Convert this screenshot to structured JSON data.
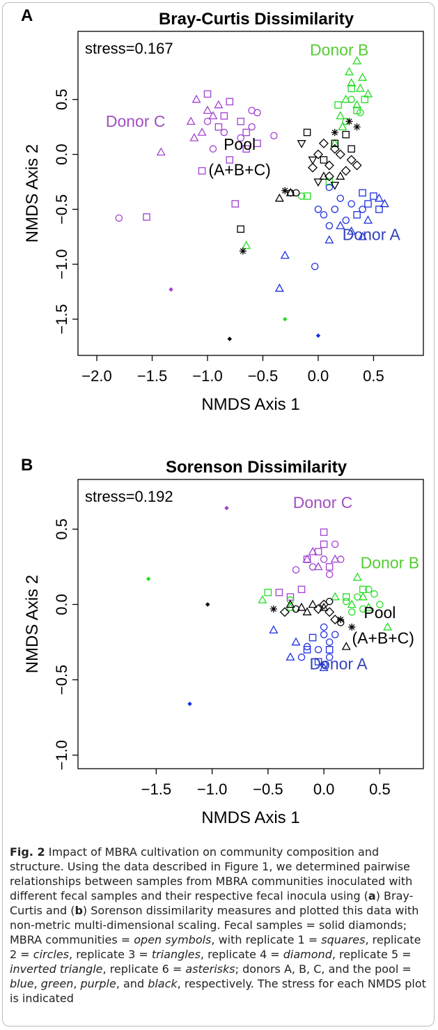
{
  "chart_data": [
    {
      "type": "scatter",
      "panel": "A",
      "title": "Bray-Curtis Dissimilarity",
      "stress": "stress=0.167",
      "x_label": "NMDS Axis 1",
      "y_label": "NMDS Axis 2",
      "xlim": [
        -2.17,
        0.95
      ],
      "ylim": [
        -1.83,
        1.12
      ],
      "xticks": [
        {
          "value": -2,
          "label": "−2.0"
        },
        {
          "value": -1.5,
          "label": "−1.5"
        },
        {
          "value": -1,
          "label": "−1.0"
        },
        {
          "value": -0.5,
          "label": "−0.5"
        },
        {
          "value": 0,
          "label": "0.0"
        },
        0.5
      ],
      "yticks": [
        {
          "value": -1.5,
          "label": "−1.5"
        },
        {
          "value": -1,
          "label": "−1.0"
        },
        {
          "value": -0.5,
          "label": "−0.5"
        },
        {
          "value": 0,
          "label": "0.0"
        },
        0.5
      ],
      "annotations": [
        {
          "text": "Donor B",
          "x": 0.19,
          "y": 0.9,
          "color": "#55cc33"
        },
        {
          "text": "Donor C",
          "x": -1.65,
          "y": 0.25,
          "color": "#a050c0"
        },
        {
          "text": "Pool",
          "x": -0.71,
          "y": 0.04,
          "color": "#000000"
        },
        {
          "text": "(A+B+C)",
          "x": -0.71,
          "y": -0.19,
          "color": "#000000"
        },
        {
          "text": "Donor A",
          "x": 0.48,
          "y": -0.78,
          "color": "#3344bb"
        }
      ],
      "series": [
        {
          "color": "#a040d0",
          "marker": "square",
          "x": [
            -1.0,
            -0.8,
            -0.7,
            -0.65,
            -0.9,
            -1.05,
            -0.8,
            -0.55,
            -0.75,
            -1.55,
            -0.65,
            -0.85
          ],
          "y": [
            0.55,
            0.48,
            0.3,
            0.2,
            0.25,
            -0.15,
            -0.05,
            0.1,
            -0.45,
            -0.57,
            0.05,
            0.35
          ]
        },
        {
          "color": "#a040d0",
          "marker": "circle",
          "x": [
            -0.6,
            -0.55,
            -0.7,
            -0.85,
            -0.4,
            -1.0,
            -1.8,
            -0.95,
            -0.6
          ],
          "y": [
            0.4,
            0.38,
            0.15,
            0.2,
            0.17,
            0.3,
            -0.58,
            0.05,
            0.25
          ]
        },
        {
          "color": "#a040d0",
          "marker": "triangle",
          "x": [
            -1.1,
            -1.0,
            -1.15,
            -1.42,
            -1.12,
            -0.9,
            -0.95,
            -1.05
          ],
          "y": [
            0.5,
            0.4,
            0.3,
            0.02,
            0.15,
            0.45,
            0.35,
            0.2
          ]
        },
        {
          "color": "#a040d0",
          "marker": "diamond-solid",
          "x": [
            -1.33
          ],
          "y": [
            -1.23
          ]
        },
        {
          "color": "#22dd22",
          "marker": "triangle",
          "x": [
            0.35,
            0.4,
            0.3,
            0.25,
            0.45,
            0.35,
            0.2,
            0.28,
            0.38,
            0.15,
            0.22,
            -0.65
          ],
          "y": [
            0.85,
            0.7,
            0.65,
            0.5,
            0.55,
            0.45,
            0.35,
            0.75,
            0.6,
            0.1,
            0.25,
            -0.83
          ]
        },
        {
          "color": "#22dd22",
          "marker": "square",
          "x": [
            0.3,
            0.42,
            0.18,
            0.35,
            -0.1,
            0.1
          ],
          "y": [
            0.6,
            0.5,
            0.45,
            0.4,
            -0.38,
            -0.25
          ]
        },
        {
          "color": "#22dd22",
          "marker": "circle",
          "x": [
            0.3,
            0.38,
            -0.15,
            0.25
          ],
          "y": [
            0.5,
            0.38,
            -0.38,
            0.3
          ]
        },
        {
          "color": "#22dd22",
          "marker": "diamond-solid",
          "x": [
            -0.3
          ],
          "y": [
            -1.5
          ]
        },
        {
          "color": "#1a2ee0",
          "marker": "circle",
          "x": [
            0.1,
            0.15,
            0.05,
            0.2,
            0.25,
            0.3,
            0.0,
            -0.03,
            0.4,
            0.1
          ],
          "y": [
            -0.3,
            -0.5,
            -0.55,
            -0.4,
            -0.6,
            -0.45,
            -0.5,
            -1.02,
            -0.5,
            -0.65
          ]
        },
        {
          "color": "#1a2ee0",
          "marker": "square",
          "x": [
            0.45,
            0.5,
            0.55,
            0.35,
            0.4
          ],
          "y": [
            -0.45,
            -0.38,
            -0.5,
            -0.55,
            -0.35
          ]
        },
        {
          "color": "#1a2ee0",
          "marker": "triangle",
          "x": [
            0.55,
            0.45,
            0.2,
            0.4,
            0.3,
            0.1,
            -0.3,
            -0.35,
            0.6
          ],
          "y": [
            -0.4,
            -0.6,
            -0.65,
            -0.75,
            -0.7,
            -0.78,
            -0.92,
            -1.22,
            -0.45
          ]
        },
        {
          "color": "#1a2ee0",
          "marker": "diamond-solid",
          "x": [
            0.0
          ],
          "y": [
            -1.65
          ]
        },
        {
          "color": "#000000",
          "marker": "square",
          "x": [
            -0.1,
            0.15,
            0.3,
            0.05,
            -0.7,
            0.25
          ],
          "y": [
            0.2,
            0.1,
            0.05,
            -0.05,
            -0.68,
            0.18
          ]
        },
        {
          "color": "#000000",
          "marker": "diamond",
          "x": [
            0.0,
            0.1,
            0.2,
            0.3,
            -0.05,
            0.15,
            0.25,
            0.35,
            0.05,
            0.1
          ],
          "y": [
            0.0,
            -0.1,
            0.0,
            -0.05,
            -0.12,
            0.05,
            -0.15,
            -0.1,
            0.1,
            -0.2
          ]
        },
        {
          "color": "#000000",
          "marker": "triangle",
          "x": [
            -0.35,
            -0.25,
            0.05,
            0.2
          ],
          "y": [
            -0.4,
            -0.35,
            -0.2,
            -0.2
          ]
        },
        {
          "color": "#000000",
          "marker": "inverted-triangle",
          "x": [
            -0.15,
            0.0,
            -0.05,
            0.15
          ],
          "y": [
            0.1,
            -0.25,
            -0.05,
            -0.28
          ]
        },
        {
          "color": "#000000",
          "marker": "asterisk",
          "x": [
            0.28,
            0.15,
            -0.3,
            -0.68,
            0.35
          ],
          "y": [
            0.3,
            0.2,
            -0.33,
            -0.88,
            0.25
          ]
        },
        {
          "color": "#000000",
          "marker": "circle",
          "x": [
            -0.25,
            -0.2
          ],
          "y": [
            -0.35,
            -0.35
          ]
        },
        {
          "color": "#000000",
          "marker": "diamond-solid",
          "x": [
            -0.8
          ],
          "y": [
            -1.68
          ]
        }
      ]
    },
    {
      "type": "scatter",
      "panel": "B",
      "title": "Sorenson Dissimilarity",
      "stress": "stress=0.192",
      "x_label": "NMDS Axis 1",
      "y_label": "NMDS Axis 2",
      "xlim": [
        -2.2,
        0.89
      ],
      "ylim": [
        -1.09,
        0.83
      ],
      "xticks": [
        {
          "value": -1.5,
          "label": "−1.5"
        },
        {
          "value": -1,
          "label": "−1.0"
        },
        {
          "value": -0.5,
          "label": "−0.5"
        },
        {
          "value": 0,
          "label": "0.0"
        },
        0.5
      ],
      "yticks": [
        {
          "value": -1,
          "label": "−1.0"
        },
        {
          "value": -0.5,
          "label": "−0.5"
        },
        {
          "value": 0,
          "label": "0.0"
        },
        0.5
      ],
      "annotations": [
        {
          "text": "Donor C",
          "x": -0.01,
          "y": 0.64,
          "color": "#a050c0"
        },
        {
          "text": "Donor B",
          "x": 0.59,
          "y": 0.24,
          "color": "#55cc33"
        },
        {
          "text": "Pool",
          "x": 0.5,
          "y": -0.09,
          "color": "#000000"
        },
        {
          "text": "(A+B+C)",
          "x": 0.53,
          "y": -0.26,
          "color": "#000000"
        },
        {
          "text": "Donor A",
          "x": 0.13,
          "y": -0.43,
          "color": "#3344bb"
        }
      ],
      "series": [
        {
          "color": "#a040d0",
          "marker": "square",
          "x": [
            0.0,
            0.0,
            -0.05,
            -0.15,
            -0.3,
            -0.4,
            -0.2,
            0.05
          ],
          "y": [
            0.48,
            0.4,
            0.35,
            0.3,
            0.05,
            0.08,
            0.1,
            0.25
          ]
        },
        {
          "color": "#a040d0",
          "marker": "circle",
          "x": [
            -0.25,
            0.1,
            0.0,
            -0.1,
            0.05,
            0.15
          ],
          "y": [
            0.23,
            0.4,
            0.3,
            0.25,
            0.2,
            0.3
          ]
        },
        {
          "color": "#a040d0",
          "marker": "triangle",
          "x": [
            -0.15,
            -0.05,
            0.1,
            -0.1
          ],
          "y": [
            0.3,
            0.25,
            0.3,
            0.35
          ]
        },
        {
          "color": "#a040d0",
          "marker": "diamond-solid",
          "x": [
            -0.87
          ],
          "y": [
            0.64
          ]
        },
        {
          "color": "#22dd22",
          "marker": "triangle",
          "x": [
            0.3,
            0.57,
            0.35,
            0.25,
            -0.55,
            0.4,
            0.1,
            -0.3
          ],
          "y": [
            0.18,
            -0.15,
            0.05,
            0.0,
            0.03,
            -0.02,
            0.05,
            -0.02
          ]
        },
        {
          "color": "#22dd22",
          "marker": "circle",
          "x": [
            0.3,
            0.35,
            0.5,
            0.45,
            0.25,
            0.2,
            0.4,
            -0.3
          ],
          "y": [
            0.05,
            -0.03,
            0.0,
            0.07,
            -0.05,
            0.02,
            0.1,
            0.03
          ]
        },
        {
          "color": "#22dd22",
          "marker": "square",
          "x": [
            -0.5,
            0.2,
            0.35
          ],
          "y": [
            0.08,
            0.05,
            0.1
          ]
        },
        {
          "color": "#22dd22",
          "marker": "diamond-solid",
          "x": [
            -1.57
          ],
          "y": [
            0.17
          ]
        },
        {
          "color": "#1a2ee0",
          "marker": "circle",
          "x": [
            0.0,
            0.05,
            -0.05,
            0.0,
            -0.15,
            0.1,
            -0.2,
            0.0,
            0.05
          ],
          "y": [
            -0.15,
            -0.25,
            -0.3,
            -0.4,
            -0.28,
            -0.2,
            -0.35,
            -0.2,
            -0.35
          ]
        },
        {
          "color": "#1a2ee0",
          "marker": "square",
          "x": [
            -0.15,
            0.05,
            -0.05,
            -0.1
          ],
          "y": [
            -0.3,
            -0.3,
            -0.38,
            -0.22
          ]
        },
        {
          "color": "#1a2ee0",
          "marker": "triangle",
          "x": [
            -0.25,
            -0.45,
            0.0,
            -0.3
          ],
          "y": [
            -0.25,
            -0.17,
            -0.42,
            -0.35
          ]
        },
        {
          "color": "#1a2ee0",
          "marker": "diamond-solid",
          "x": [
            -1.2
          ],
          "y": [
            -0.66
          ]
        },
        {
          "color": "#000000",
          "marker": "triangle",
          "x": [
            -0.1,
            -0.2,
            -0.3,
            0.0,
            0.2,
            -0.15
          ],
          "y": [
            0.0,
            -0.02,
            0.0,
            -0.02,
            -0.28,
            -0.05
          ]
        },
        {
          "color": "#000000",
          "marker": "diamond",
          "x": [
            0.0,
            0.05,
            -0.05,
            0.1,
            -0.35
          ],
          "y": [
            0.0,
            -0.05,
            -0.03,
            -0.1,
            -0.05
          ]
        },
        {
          "color": "#000000",
          "marker": "circle",
          "x": [
            -0.25,
            0.05,
            0.15
          ],
          "y": [
            -0.03,
            0.02,
            -0.12
          ]
        },
        {
          "color": "#000000",
          "marker": "asterisk",
          "x": [
            -0.45,
            0.25,
            0.15
          ],
          "y": [
            -0.03,
            -0.15,
            -0.1
          ]
        },
        {
          "color": "#000000",
          "marker": "diamond-solid",
          "x": [
            -1.04
          ],
          "y": [
            0.0
          ]
        }
      ]
    }
  ],
  "caption": [
    {
      "text": "Fig. 2",
      "style": "bold"
    },
    {
      "text": " Impact of MBRA cultivation on community composition and structure. Using the data described in Figure 1, we determined pairwise relationships between samples from MBRA communities inoculated with different fecal samples and their respective fecal inocula using (",
      "style": "normal"
    },
    {
      "text": "a",
      "style": "bold"
    },
    {
      "text": ") Bray-Curtis and (",
      "style": "normal"
    },
    {
      "text": "b",
      "style": "bold"
    },
    {
      "text": ") Sorenson dissimilarity measures and plotted this data with non-metric multi-dimensional scaling. Fecal samples = solid diamonds; MBRA communities = ",
      "style": "normal"
    },
    {
      "text": "open symbols",
      "style": "italic"
    },
    {
      "text": ", with replicate 1 = ",
      "style": "normal"
    },
    {
      "text": "squares",
      "style": "italic"
    },
    {
      "text": ", replicate 2 = ",
      "style": "normal"
    },
    {
      "text": "circles",
      "style": "italic"
    },
    {
      "text": ", replicate 3 = ",
      "style": "normal"
    },
    {
      "text": "triangles",
      "style": "italic"
    },
    {
      "text": ", replicate 4 = ",
      "style": "normal"
    },
    {
      "text": "diamond",
      "style": "italic"
    },
    {
      "text": ", replicate 5 = ",
      "style": "normal"
    },
    {
      "text": "inverted triangle",
      "style": "italic"
    },
    {
      "text": ", replicate 6 = ",
      "style": "normal"
    },
    {
      "text": "asterisks",
      "style": "italic"
    },
    {
      "text": "; donors A, B, C, and the pool = ",
      "style": "normal"
    },
    {
      "text": "blue",
      "style": "italic"
    },
    {
      "text": ", ",
      "style": "normal"
    },
    {
      "text": "green",
      "style": "italic"
    },
    {
      "text": ", ",
      "style": "normal"
    },
    {
      "text": "purple",
      "style": "italic"
    },
    {
      "text": ", and ",
      "style": "normal"
    },
    {
      "text": "black",
      "style": "italic"
    },
    {
      "text": ", respectively. The stress for each NMDS plot is indicated",
      "style": "normal"
    }
  ]
}
